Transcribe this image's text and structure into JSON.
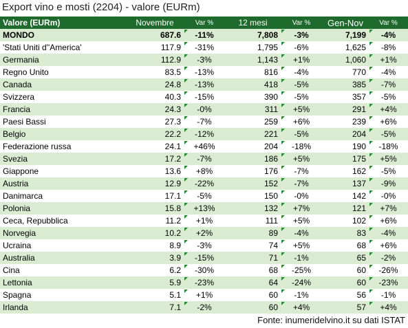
{
  "title": "Export vino e mosti (2204) - valore (EURm)",
  "header": {
    "country": "Valore (EURm)",
    "nov": "Novembre",
    "nov_var": "Var %",
    "m12": "12 mesi",
    "m12_var": "Var %",
    "ytd": "Gen-Nov",
    "ytd_var": "Var %"
  },
  "rows": [
    {
      "country": "MONDO",
      "nov": "687.6",
      "nov_var": "-11%",
      "m12": "7,808",
      "m12_var": "-3%",
      "ytd": "7,199",
      "ytd_var": "-4%"
    },
    {
      "country": "'Stati Uniti d''America'",
      "nov": "117.9",
      "nov_var": "-31%",
      "m12": "1,795",
      "m12_var": "-6%",
      "ytd": "1,625",
      "ytd_var": "-8%"
    },
    {
      "country": "Germania",
      "nov": "112.9",
      "nov_var": "-3%",
      "m12": "1,143",
      "m12_var": "+1%",
      "ytd": "1,060",
      "ytd_var": "+1%"
    },
    {
      "country": "Regno Unito",
      "nov": "83.5",
      "nov_var": "-13%",
      "m12": "816",
      "m12_var": "-4%",
      "ytd": "770",
      "ytd_var": "-4%"
    },
    {
      "country": "Canada",
      "nov": "24.8",
      "nov_var": "-13%",
      "m12": "418",
      "m12_var": "-5%",
      "ytd": "385",
      "ytd_var": "-7%"
    },
    {
      "country": "Svizzera",
      "nov": "40.3",
      "nov_var": "-15%",
      "m12": "390",
      "m12_var": "-5%",
      "ytd": "357",
      "ytd_var": "-5%"
    },
    {
      "country": "Francia",
      "nov": "24.3",
      "nov_var": "-0%",
      "m12": "311",
      "m12_var": "+5%",
      "ytd": "291",
      "ytd_var": "+4%"
    },
    {
      "country": "Paesi Bassi",
      "nov": "27.3",
      "nov_var": "-7%",
      "m12": "259",
      "m12_var": "+6%",
      "ytd": "239",
      "ytd_var": "+6%"
    },
    {
      "country": "Belgio",
      "nov": "22.2",
      "nov_var": "-12%",
      "m12": "221",
      "m12_var": "-5%",
      "ytd": "204",
      "ytd_var": "-5%"
    },
    {
      "country": "Federazione russa",
      "nov": "24.1",
      "nov_var": "+46%",
      "m12": "204",
      "m12_var": "-18%",
      "ytd": "190",
      "ytd_var": "-18%"
    },
    {
      "country": "Svezia",
      "nov": "17.2",
      "nov_var": "-7%",
      "m12": "186",
      "m12_var": "+5%",
      "ytd": "175",
      "ytd_var": "+5%"
    },
    {
      "country": "Giappone",
      "nov": "13.6",
      "nov_var": "+8%",
      "m12": "176",
      "m12_var": "-7%",
      "ytd": "162",
      "ytd_var": "-5%"
    },
    {
      "country": "Austria",
      "nov": "12.9",
      "nov_var": "-22%",
      "m12": "152",
      "m12_var": "-7%",
      "ytd": "137",
      "ytd_var": "-9%"
    },
    {
      "country": "Danimarca",
      "nov": "17.1",
      "nov_var": "-5%",
      "m12": "150",
      "m12_var": "-0%",
      "ytd": "142",
      "ytd_var": "-0%"
    },
    {
      "country": "Polonia",
      "nov": "15.8",
      "nov_var": "+13%",
      "m12": "132",
      "m12_var": "+7%",
      "ytd": "121",
      "ytd_var": "+7%"
    },
    {
      "country": "Ceca, Repubblica",
      "nov": "11.2",
      "nov_var": "+1%",
      "m12": "111",
      "m12_var": "+5%",
      "ytd": "102",
      "ytd_var": "+6%"
    },
    {
      "country": "Norvegia",
      "nov": "10.2",
      "nov_var": "+2%",
      "m12": "89",
      "m12_var": "-4%",
      "ytd": "83",
      "ytd_var": "-4%"
    },
    {
      "country": "Ucraina",
      "nov": "8.9",
      "nov_var": "-3%",
      "m12": "74",
      "m12_var": "+5%",
      "ytd": "68",
      "ytd_var": "+6%"
    },
    {
      "country": "Australia",
      "nov": "3.9",
      "nov_var": "-15%",
      "m12": "71",
      "m12_var": "-1%",
      "ytd": "65",
      "ytd_var": "-2%"
    },
    {
      "country": "Cina",
      "nov": "6.2",
      "nov_var": "-30%",
      "m12": "68",
      "m12_var": "-25%",
      "ytd": "60",
      "ytd_var": "-26%"
    },
    {
      "country": "Lettonia",
      "nov": "5.9",
      "nov_var": "-23%",
      "m12": "64",
      "m12_var": "-24%",
      "ytd": "60",
      "ytd_var": "-23%"
    },
    {
      "country": "Spagna",
      "nov": "5.1",
      "nov_var": "+1%",
      "m12": "60",
      "m12_var": "-1%",
      "ytd": "56",
      "ytd_var": "-1%"
    },
    {
      "country": "Irlanda",
      "nov": "7.1",
      "nov_var": "-2%",
      "m12": "60",
      "m12_var": "+4%",
      "ytd": "57",
      "ytd_var": "+4%"
    }
  ],
  "source": "Fonte: inumeridelvino.it su dati ISTAT",
  "colors": {
    "header_bg": "#1e6b2d",
    "band": "#d9ecd2",
    "marker": "#1a8f2a"
  }
}
